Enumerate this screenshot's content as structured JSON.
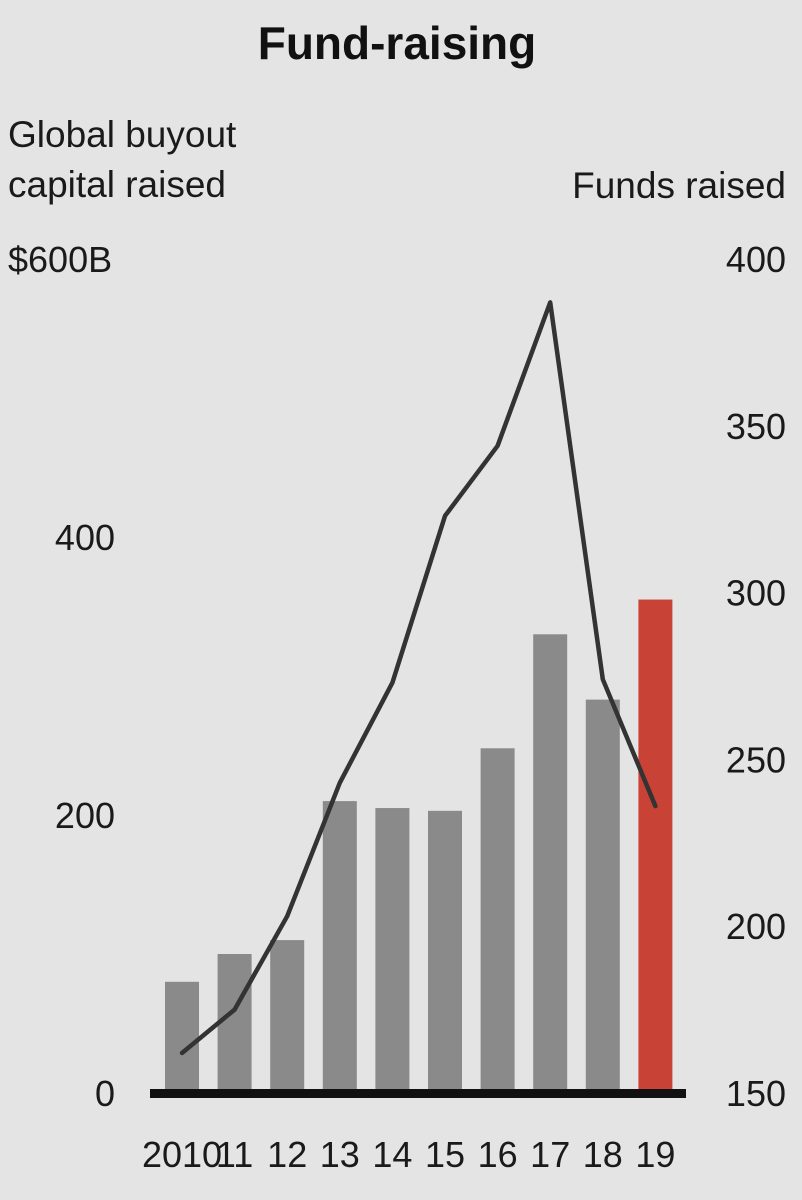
{
  "chart_data": {
    "type": "bar",
    "title": "Fund-raising",
    "categories": [
      "2010",
      "11",
      "12",
      "13",
      "14",
      "15",
      "16",
      "17",
      "18",
      "19"
    ],
    "series": [
      {
        "name": "Global buyout capital raised",
        "type": "bar",
        "axis": "left",
        "values": [
          80,
          100,
          110,
          210,
          205,
          203,
          248,
          330,
          283,
          355
        ]
      },
      {
        "name": "Funds raised",
        "type": "line",
        "axis": "right",
        "values": [
          162,
          175,
          203,
          243,
          273,
          323,
          344,
          387,
          274,
          236
        ]
      }
    ],
    "left_axis": {
      "label_lines": [
        "Global buyout",
        "capital raised"
      ],
      "ylim": [
        0,
        600
      ],
      "ticks": [
        {
          "value": 600,
          "label": "$600B"
        },
        {
          "value": 400,
          "label": "400"
        },
        {
          "value": 200,
          "label": "200"
        },
        {
          "value": 0,
          "label": "0"
        }
      ]
    },
    "right_axis": {
      "label": "Funds raised",
      "ylim": [
        150,
        400
      ],
      "ticks": [
        {
          "value": 400,
          "label": "400"
        },
        {
          "value": 350,
          "label": "350"
        },
        {
          "value": 300,
          "label": "300"
        },
        {
          "value": 250,
          "label": "250"
        },
        {
          "value": 200,
          "label": "200"
        },
        {
          "value": 150,
          "label": "150"
        }
      ]
    },
    "grid": false,
    "highlight_index": 9,
    "colors": {
      "background": "#e4e4e4",
      "bar": "#8a8a8a",
      "bar_highlight": "#c94236",
      "line": "#333333",
      "baseline": "#111111",
      "text": "#1a1a1a"
    }
  }
}
